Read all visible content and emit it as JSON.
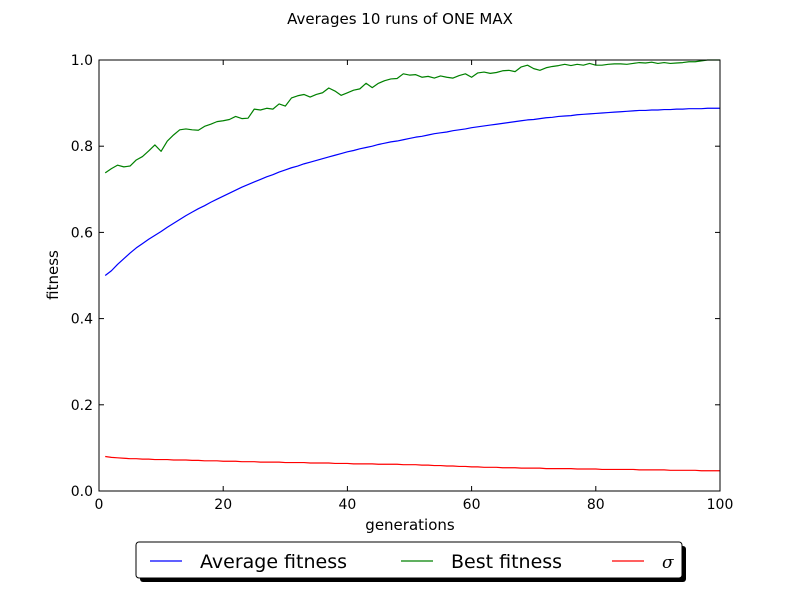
{
  "chart_data": {
    "type": "line",
    "title": "Averages 10 runs of ONE MAX",
    "xlabel": "generations",
    "ylabel": "fitness",
    "xlim": [
      0,
      100
    ],
    "ylim": [
      0.0,
      1.0
    ],
    "xticks": [
      0,
      20,
      40,
      60,
      80,
      100
    ],
    "yticks": [
      0.0,
      0.2,
      0.4,
      0.6,
      0.8,
      1.0
    ],
    "xtick_labels": [
      "0",
      "20",
      "40",
      "60",
      "80",
      "100"
    ],
    "ytick_labels": [
      "0.0",
      "0.2",
      "0.4",
      "0.6",
      "0.8",
      "1.0"
    ],
    "grid": false,
    "legend_position": "bottom-center",
    "x": [
      1,
      2,
      3,
      4,
      5,
      6,
      7,
      8,
      9,
      10,
      11,
      12,
      13,
      14,
      15,
      16,
      17,
      18,
      19,
      20,
      21,
      22,
      23,
      24,
      25,
      26,
      27,
      28,
      29,
      30,
      31,
      32,
      33,
      34,
      35,
      36,
      37,
      38,
      39,
      40,
      41,
      42,
      43,
      44,
      45,
      46,
      47,
      48,
      49,
      50,
      51,
      52,
      53,
      54,
      55,
      56,
      57,
      58,
      59,
      60,
      61,
      62,
      63,
      64,
      65,
      66,
      67,
      68,
      69,
      70,
      71,
      72,
      73,
      74,
      75,
      76,
      77,
      78,
      79,
      80,
      81,
      82,
      83,
      84,
      85,
      86,
      87,
      88,
      89,
      90,
      91,
      92,
      93,
      94,
      95,
      96,
      97,
      98,
      99,
      100
    ],
    "series": [
      {
        "name": "Average fitness",
        "color": "#0000ff",
        "values": [
          0.5,
          0.511,
          0.526,
          0.539,
          0.552,
          0.564,
          0.574,
          0.584,
          0.593,
          0.602,
          0.612,
          0.621,
          0.63,
          0.639,
          0.647,
          0.655,
          0.662,
          0.67,
          0.677,
          0.684,
          0.691,
          0.698,
          0.705,
          0.711,
          0.717,
          0.723,
          0.729,
          0.734,
          0.74,
          0.745,
          0.75,
          0.754,
          0.759,
          0.763,
          0.767,
          0.771,
          0.775,
          0.779,
          0.783,
          0.787,
          0.79,
          0.794,
          0.797,
          0.8,
          0.804,
          0.807,
          0.81,
          0.812,
          0.815,
          0.818,
          0.821,
          0.823,
          0.826,
          0.829,
          0.831,
          0.833,
          0.836,
          0.838,
          0.84,
          0.843,
          0.845,
          0.847,
          0.849,
          0.851,
          0.853,
          0.855,
          0.857,
          0.859,
          0.861,
          0.862,
          0.864,
          0.866,
          0.867,
          0.869,
          0.87,
          0.871,
          0.873,
          0.874,
          0.875,
          0.876,
          0.877,
          0.878,
          0.879,
          0.88,
          0.881,
          0.882,
          0.883,
          0.883,
          0.884,
          0.884,
          0.885,
          0.885,
          0.886,
          0.886,
          0.887,
          0.887,
          0.887,
          0.888,
          0.888,
          0.888
        ]
      },
      {
        "name": "Best fitness",
        "color": "#008000",
        "values": [
          0.738,
          0.748,
          0.756,
          0.752,
          0.754,
          0.768,
          0.776,
          0.789,
          0.803,
          0.788,
          0.812,
          0.826,
          0.838,
          0.84,
          0.838,
          0.837,
          0.846,
          0.851,
          0.857,
          0.859,
          0.862,
          0.869,
          0.864,
          0.865,
          0.886,
          0.884,
          0.888,
          0.886,
          0.898,
          0.893,
          0.912,
          0.917,
          0.92,
          0.914,
          0.92,
          0.924,
          0.935,
          0.928,
          0.918,
          0.924,
          0.93,
          0.933,
          0.946,
          0.936,
          0.946,
          0.952,
          0.956,
          0.957,
          0.968,
          0.965,
          0.966,
          0.96,
          0.962,
          0.958,
          0.963,
          0.96,
          0.958,
          0.964,
          0.968,
          0.96,
          0.97,
          0.972,
          0.969,
          0.971,
          0.975,
          0.976,
          0.973,
          0.984,
          0.988,
          0.98,
          0.976,
          0.982,
          0.985,
          0.987,
          0.99,
          0.987,
          0.99,
          0.988,
          0.992,
          0.988,
          0.988,
          0.99,
          0.991,
          0.991,
          0.99,
          0.992,
          0.994,
          0.993,
          0.995,
          0.992,
          0.994,
          0.992,
          0.993,
          0.994,
          0.996,
          0.996,
          0.998,
          1.0,
          1.0,
          1.0
        ]
      },
      {
        "name": "σ",
        "color": "#ff0000",
        "values": [
          0.08,
          0.078,
          0.077,
          0.076,
          0.075,
          0.075,
          0.074,
          0.074,
          0.073,
          0.073,
          0.073,
          0.072,
          0.072,
          0.072,
          0.071,
          0.071,
          0.07,
          0.07,
          0.07,
          0.069,
          0.069,
          0.069,
          0.068,
          0.068,
          0.068,
          0.067,
          0.067,
          0.067,
          0.067,
          0.066,
          0.066,
          0.066,
          0.066,
          0.065,
          0.065,
          0.065,
          0.065,
          0.064,
          0.064,
          0.064,
          0.063,
          0.063,
          0.063,
          0.063,
          0.062,
          0.062,
          0.062,
          0.062,
          0.061,
          0.061,
          0.061,
          0.06,
          0.06,
          0.059,
          0.059,
          0.058,
          0.058,
          0.057,
          0.057,
          0.056,
          0.056,
          0.055,
          0.055,
          0.055,
          0.054,
          0.054,
          0.054,
          0.053,
          0.053,
          0.053,
          0.053,
          0.052,
          0.052,
          0.052,
          0.052,
          0.052,
          0.051,
          0.051,
          0.051,
          0.051,
          0.05,
          0.05,
          0.05,
          0.05,
          0.05,
          0.05,
          0.049,
          0.049,
          0.049,
          0.049,
          0.049,
          0.048,
          0.048,
          0.048,
          0.048,
          0.048,
          0.047,
          0.047,
          0.047,
          0.047
        ]
      }
    ]
  }
}
